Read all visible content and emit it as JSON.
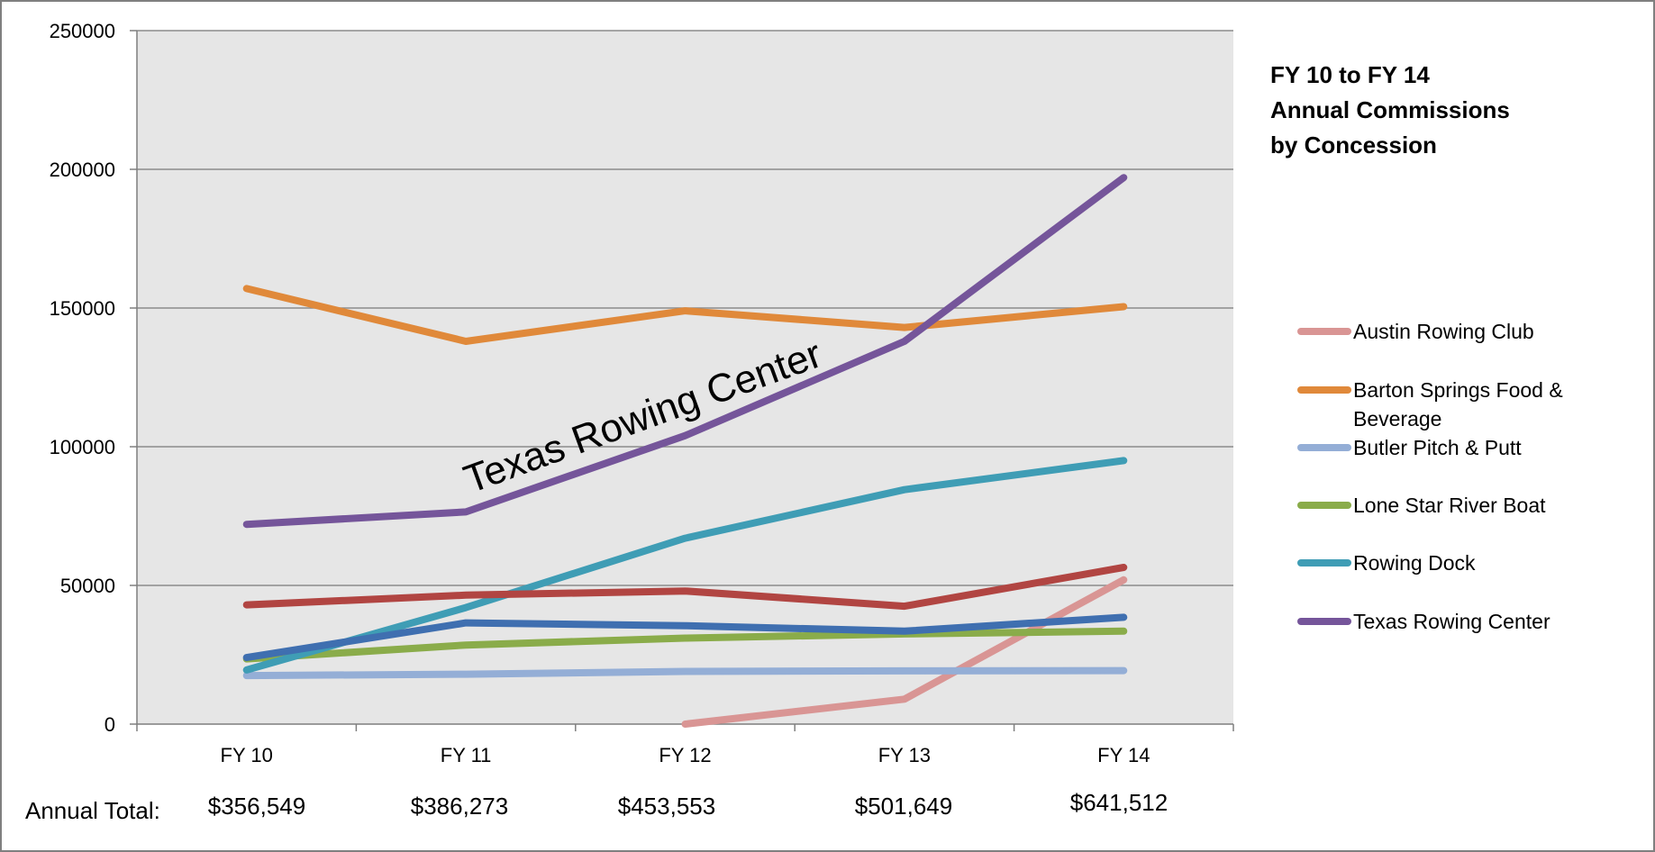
{
  "chart_data": {
    "type": "line",
    "title_lines": [
      "FY 10 to FY 14",
      "Annual Commissions",
      "by Concession"
    ],
    "categories": [
      "FY 10",
      "FY 11",
      "FY 12",
      "FY 13",
      "FY 14"
    ],
    "ylim": [
      0,
      250000
    ],
    "yticks": [
      "0",
      "50000",
      "100000",
      "150000",
      "200000",
      "250000"
    ],
    "grid": true,
    "legend_position": "right",
    "series": [
      {
        "name": "Austin Rowing Club",
        "color": "#d99594",
        "values": [
          null,
          null,
          0,
          9000,
          52000
        ]
      },
      {
        "name": "Barton Springs Food & Beverage",
        "color": "#e0893a",
        "values": [
          157000,
          138000,
          149000,
          143000,
          150500
        ]
      },
      {
        "name": "Butler Pitch & Putt",
        "color": "#94aed6",
        "values": [
          17500,
          18000,
          19000,
          19200,
          19300
        ]
      },
      {
        "name": "Lone Star River Boat",
        "color": "#8aac4a",
        "values": [
          23500,
          28500,
          31000,
          32500,
          33500
        ]
      },
      {
        "name": "Rowing Dock",
        "color": "#3f9db5",
        "values": [
          19500,
          42000,
          67000,
          84500,
          95000
        ]
      },
      {
        "name": "Texas Rowing Center",
        "color": "#75559a",
        "values": [
          72000,
          76500,
          104000,
          138000,
          197000
        ]
      },
      {
        "name": "",
        "color": "#b14542",
        "values": [
          43000,
          46500,
          48000,
          42500,
          56500
        ]
      },
      {
        "name": "",
        "color": "#3f6fb0",
        "values": [
          24000,
          36500,
          35500,
          33500,
          38500
        ]
      }
    ],
    "annotation": "Texas Rowing Center",
    "totals_label": "Annual Total:",
    "totals": [
      "$356,549",
      "$386,273",
      "$453,553",
      "$501,649",
      "$641,512"
    ]
  }
}
